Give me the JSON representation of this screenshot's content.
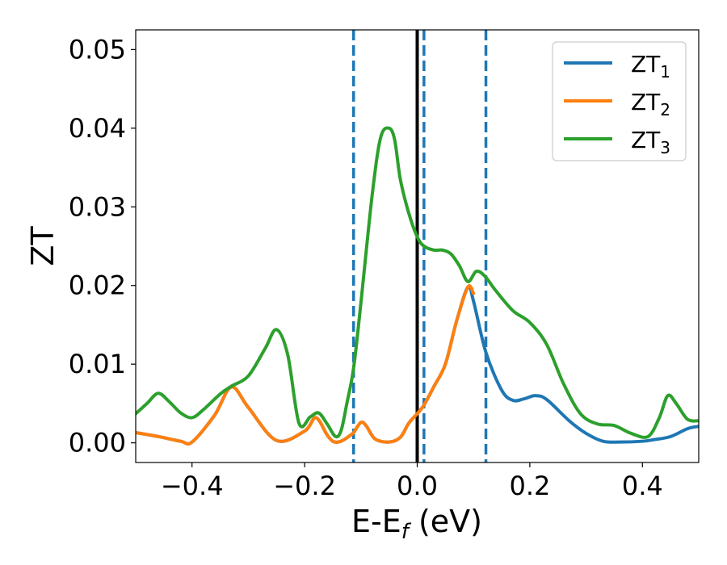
{
  "chart_data": {
    "type": "line",
    "xlabel": "E-E",
    "xlabel_sub": "f",
    "xlabel_unit": " (eV)",
    "ylabel": "ZT",
    "xlim": [
      -0.5,
      0.5
    ],
    "ylim": [
      -0.0025,
      0.0525
    ],
    "x_ticks": [
      -0.4,
      -0.2,
      0.0,
      0.2,
      0.4
    ],
    "x_tick_labels": [
      "−0.4",
      "−0.2",
      "0.0",
      "0.2",
      "0.4"
    ],
    "y_ticks": [
      0.0,
      0.01,
      0.02,
      0.03,
      0.04,
      0.05
    ],
    "y_tick_labels": [
      "0.00",
      "0.01",
      "0.02",
      "0.03",
      "0.04",
      "0.05"
    ],
    "legend_position": "top-right",
    "vertical_lines": [
      {
        "x": 0.0,
        "style": "solid",
        "color": "#000000"
      },
      {
        "x": -0.113,
        "style": "dashed",
        "color": "#1f77b4"
      },
      {
        "x": 0.012,
        "style": "dashed",
        "color": "#1f77b4"
      },
      {
        "x": 0.122,
        "style": "dashed",
        "color": "#1f77b4"
      }
    ],
    "series": [
      {
        "name": "ZT",
        "name_sub": "1",
        "color": "#1f77b4",
        "x": [
          -0.5,
          -0.46,
          -0.42,
          -0.4,
          -0.36,
          -0.33,
          -0.3,
          -0.25,
          -0.2,
          -0.18,
          -0.16,
          -0.15,
          -0.14,
          -0.13,
          -0.12,
          -0.113,
          -0.1,
          -0.09,
          -0.075,
          -0.05,
          -0.03,
          -0.015,
          0.0,
          0.012,
          0.03,
          0.05,
          0.07,
          0.09,
          0.1,
          0.122,
          0.15,
          0.17,
          0.19,
          0.21,
          0.23,
          0.27,
          0.3,
          0.33,
          0.36,
          0.4,
          0.42,
          0.45,
          0.48,
          0.5
        ],
        "y": [
          0.0013,
          0.0008,
          0.0002,
          0.0001,
          0.0035,
          0.0071,
          0.0045,
          0.0003,
          0.0015,
          0.0032,
          0.001,
          0.0002,
          0.0001,
          0.0004,
          0.0009,
          0.0013,
          0.0026,
          0.0021,
          0.0005,
          0.0001,
          0.0007,
          0.0025,
          0.0037,
          0.0048,
          0.0072,
          0.01,
          0.0155,
          0.0198,
          0.018,
          0.0115,
          0.0067,
          0.0054,
          0.0056,
          0.006,
          0.0055,
          0.0028,
          0.0012,
          0.0002,
          0.0001,
          0.0002,
          0.0004,
          0.0008,
          0.0018,
          0.0021
        ]
      },
      {
        "name": "ZT",
        "name_sub": "2",
        "color": "#ff7f0e",
        "x": [
          -0.5,
          -0.46,
          -0.42,
          -0.4,
          -0.36,
          -0.33,
          -0.3,
          -0.25,
          -0.2,
          -0.18,
          -0.16,
          -0.15,
          -0.14,
          -0.13,
          -0.12,
          -0.113,
          -0.1,
          -0.09,
          -0.075,
          -0.05,
          -0.03,
          -0.015,
          0.0,
          0.012,
          0.03,
          0.05,
          0.07,
          0.09,
          0.1
        ],
        "y": [
          0.0013,
          0.0008,
          0.0002,
          0.0001,
          0.0035,
          0.0071,
          0.0045,
          0.0003,
          0.0015,
          0.0032,
          0.001,
          0.0002,
          0.0001,
          0.0004,
          0.0009,
          0.0013,
          0.0026,
          0.0021,
          0.0005,
          0.0001,
          0.0007,
          0.0025,
          0.0037,
          0.0048,
          0.0072,
          0.01,
          0.0155,
          0.0198,
          0.019
        ]
      },
      {
        "name": "ZT",
        "name_sub": "3",
        "color": "#2ca02c",
        "x": [
          -0.5,
          -0.48,
          -0.46,
          -0.44,
          -0.42,
          -0.4,
          -0.38,
          -0.35,
          -0.33,
          -0.3,
          -0.27,
          -0.25,
          -0.23,
          -0.21,
          -0.19,
          -0.175,
          -0.16,
          -0.145,
          -0.135,
          -0.125,
          -0.113,
          -0.1,
          -0.08,
          -0.065,
          -0.05,
          -0.04,
          -0.03,
          -0.015,
          0.0,
          0.012,
          0.03,
          0.045,
          0.06,
          0.075,
          0.09,
          0.105,
          0.12,
          0.14,
          0.17,
          0.2,
          0.23,
          0.26,
          0.29,
          0.32,
          0.35,
          0.38,
          0.41,
          0.43,
          0.445,
          0.46,
          0.48,
          0.5
        ],
        "y": [
          0.0037,
          0.005,
          0.0063,
          0.0052,
          0.0038,
          0.0032,
          0.0042,
          0.0062,
          0.0072,
          0.0085,
          0.012,
          0.0144,
          0.0112,
          0.0025,
          0.0033,
          0.0038,
          0.0024,
          0.0008,
          0.0016,
          0.005,
          0.0095,
          0.0178,
          0.0315,
          0.0388,
          0.04,
          0.0385,
          0.0335,
          0.0292,
          0.0262,
          0.025,
          0.0245,
          0.0245,
          0.024,
          0.0225,
          0.0205,
          0.0218,
          0.0212,
          0.0193,
          0.0168,
          0.0153,
          0.0125,
          0.0075,
          0.0037,
          0.0024,
          0.0022,
          0.0012,
          0.0008,
          0.0032,
          0.006,
          0.005,
          0.003,
          0.0028
        ]
      }
    ]
  }
}
